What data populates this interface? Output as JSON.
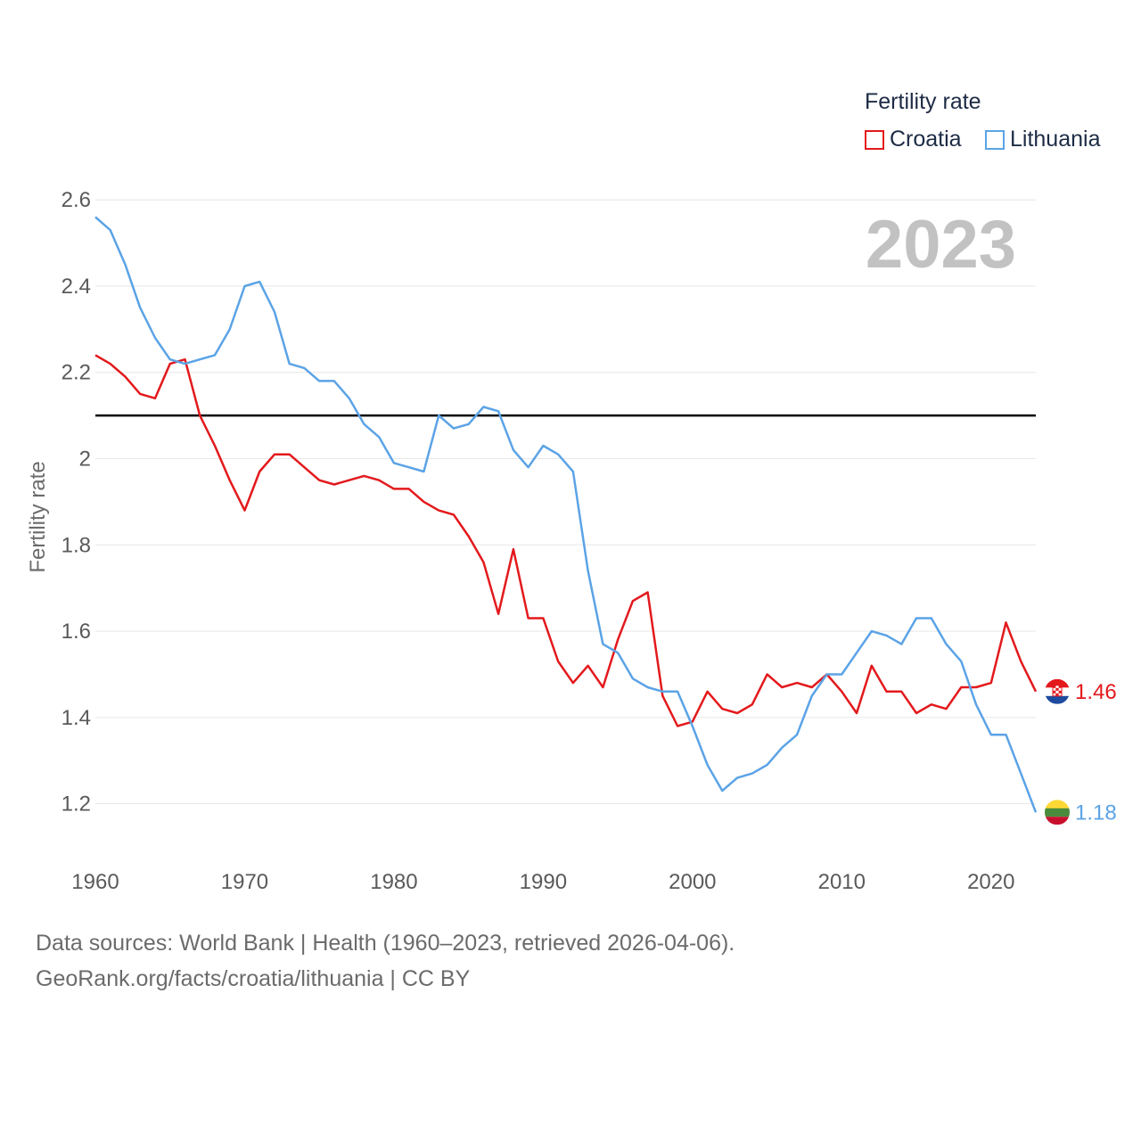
{
  "legend": {
    "title": "Fertility rate",
    "items": [
      {
        "label": "Croatia",
        "color": "#e3191c"
      },
      {
        "label": "Lithuania",
        "color": "#5ba3e6"
      }
    ]
  },
  "year_label": "2023",
  "footer": {
    "line1": "Data sources: World Bank | Health (1960–2023, retrieved 2026-04-06).",
    "line2": "GeoRank.org/facts/croatia/lithuania | CC BY"
  },
  "chart_data": {
    "type": "line",
    "title": "",
    "xlabel": "",
    "ylabel": "Fertility rate",
    "xlim": [
      1960,
      2023
    ],
    "ylim": [
      1.1,
      2.65
    ],
    "x_ticks": [
      1960,
      1970,
      1980,
      1990,
      2000,
      2010,
      2020
    ],
    "y_ticks": [
      1.2,
      1.4,
      1.6,
      1.8,
      2.0,
      2.2,
      2.4,
      2.6
    ],
    "y_tick_labels": [
      "1.2",
      "1.4",
      "1.6",
      "1.8",
      "2",
      "2.2",
      "2.4",
      "2.6"
    ],
    "reference_line": 2.1,
    "x": [
      1960,
      1961,
      1962,
      1963,
      1964,
      1965,
      1966,
      1967,
      1968,
      1969,
      1970,
      1971,
      1972,
      1973,
      1974,
      1975,
      1976,
      1977,
      1978,
      1979,
      1980,
      1981,
      1982,
      1983,
      1984,
      1985,
      1986,
      1987,
      1988,
      1989,
      1990,
      1991,
      1992,
      1993,
      1994,
      1995,
      1996,
      1997,
      1998,
      1999,
      2000,
      2001,
      2002,
      2003,
      2004,
      2005,
      2006,
      2007,
      2008,
      2009,
      2010,
      2011,
      2012,
      2013,
      2014,
      2015,
      2016,
      2017,
      2018,
      2019,
      2020,
      2021,
      2022,
      2023
    ],
    "series": [
      {
        "name": "Croatia",
        "color": "#e3191c",
        "end_label": "1.46",
        "values": [
          2.24,
          2.22,
          2.19,
          2.15,
          2.14,
          2.22,
          2.23,
          2.1,
          2.03,
          1.95,
          1.88,
          1.97,
          2.01,
          2.01,
          1.98,
          1.95,
          1.94,
          1.95,
          1.96,
          1.95,
          1.93,
          1.93,
          1.9,
          1.88,
          1.87,
          1.82,
          1.76,
          1.64,
          1.79,
          1.63,
          1.63,
          1.53,
          1.48,
          1.52,
          1.47,
          1.58,
          1.67,
          1.69,
          1.45,
          1.38,
          1.39,
          1.46,
          1.42,
          1.41,
          1.43,
          1.5,
          1.47,
          1.48,
          1.47,
          1.5,
          1.46,
          1.41,
          1.52,
          1.46,
          1.46,
          1.41,
          1.43,
          1.42,
          1.47,
          1.47,
          1.48,
          1.62,
          1.53,
          1.46
        ]
      },
      {
        "name": "Lithuania",
        "color": "#5ba3e6",
        "end_label": "1.18",
        "values": [
          2.56,
          2.53,
          2.45,
          2.35,
          2.28,
          2.23,
          2.22,
          2.23,
          2.24,
          2.3,
          2.4,
          2.41,
          2.34,
          2.22,
          2.21,
          2.18,
          2.18,
          2.14,
          2.08,
          2.05,
          1.99,
          1.98,
          1.97,
          2.1,
          2.07,
          2.08,
          2.12,
          2.11,
          2.02,
          1.98,
          2.03,
          2.01,
          1.97,
          1.74,
          1.57,
          1.55,
          1.49,
          1.47,
          1.46,
          1.46,
          1.38,
          1.29,
          1.23,
          1.26,
          1.27,
          1.29,
          1.33,
          1.36,
          1.45,
          1.5,
          1.5,
          1.55,
          1.6,
          1.59,
          1.57,
          1.63,
          1.63,
          1.57,
          1.53,
          1.43,
          1.36,
          1.36,
          1.27,
          1.18
        ]
      }
    ]
  }
}
